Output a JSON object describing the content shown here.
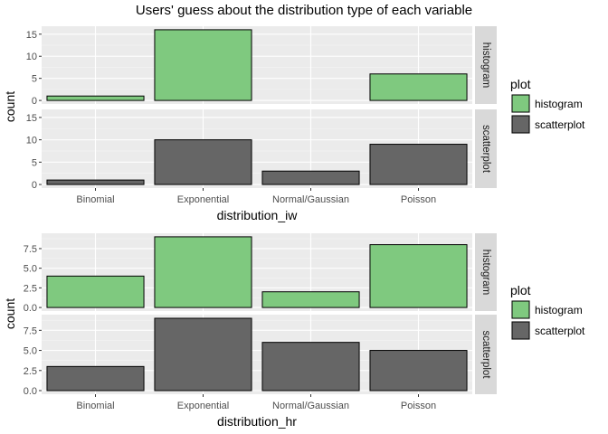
{
  "title": "Users' guess about the distribution type of each variable",
  "chart_data": [
    {
      "type": "bar",
      "xlabel": "distribution_iw",
      "ylabel": "count",
      "categories": [
        "Binomial",
        "Exponential",
        "Normal/Gaussian",
        "Poisson"
      ],
      "facets": [
        "histogram",
        "scatterplot"
      ],
      "series": [
        {
          "name": "histogram",
          "values": [
            1,
            16,
            0,
            6
          ]
        },
        {
          "name": "scatterplot",
          "values": [
            1,
            10,
            3,
            9
          ]
        }
      ],
      "yticks": [
        0,
        5,
        10,
        15
      ],
      "ytick_labels": [
        "0",
        "5",
        "10",
        "15"
      ],
      "ylim": [
        -0.8,
        16.8
      ],
      "legend": {
        "title": "plot",
        "entries": [
          "histogram",
          "scatterplot"
        ],
        "position": "right"
      },
      "grid": true
    },
    {
      "type": "bar",
      "xlabel": "distribution_hr",
      "ylabel": "count",
      "categories": [
        "Binomial",
        "Exponential",
        "Normal/Gaussian",
        "Poisson"
      ],
      "facets": [
        "histogram",
        "scatterplot"
      ],
      "series": [
        {
          "name": "histogram",
          "values": [
            4,
            9,
            2,
            8
          ]
        },
        {
          "name": "scatterplot",
          "values": [
            3,
            9,
            6,
            5
          ]
        }
      ],
      "yticks": [
        0,
        2.5,
        5,
        7.5
      ],
      "ytick_labels": [
        "0.0",
        "2.5",
        "5.0",
        "7.5"
      ],
      "ylim": [
        -0.45,
        9.45
      ],
      "legend": {
        "title": "plot",
        "entries": [
          "histogram",
          "scatterplot"
        ],
        "position": "right"
      },
      "grid": true
    }
  ],
  "colors": {
    "histogram": "#7fc97f",
    "scatterplot": "#666666"
  }
}
